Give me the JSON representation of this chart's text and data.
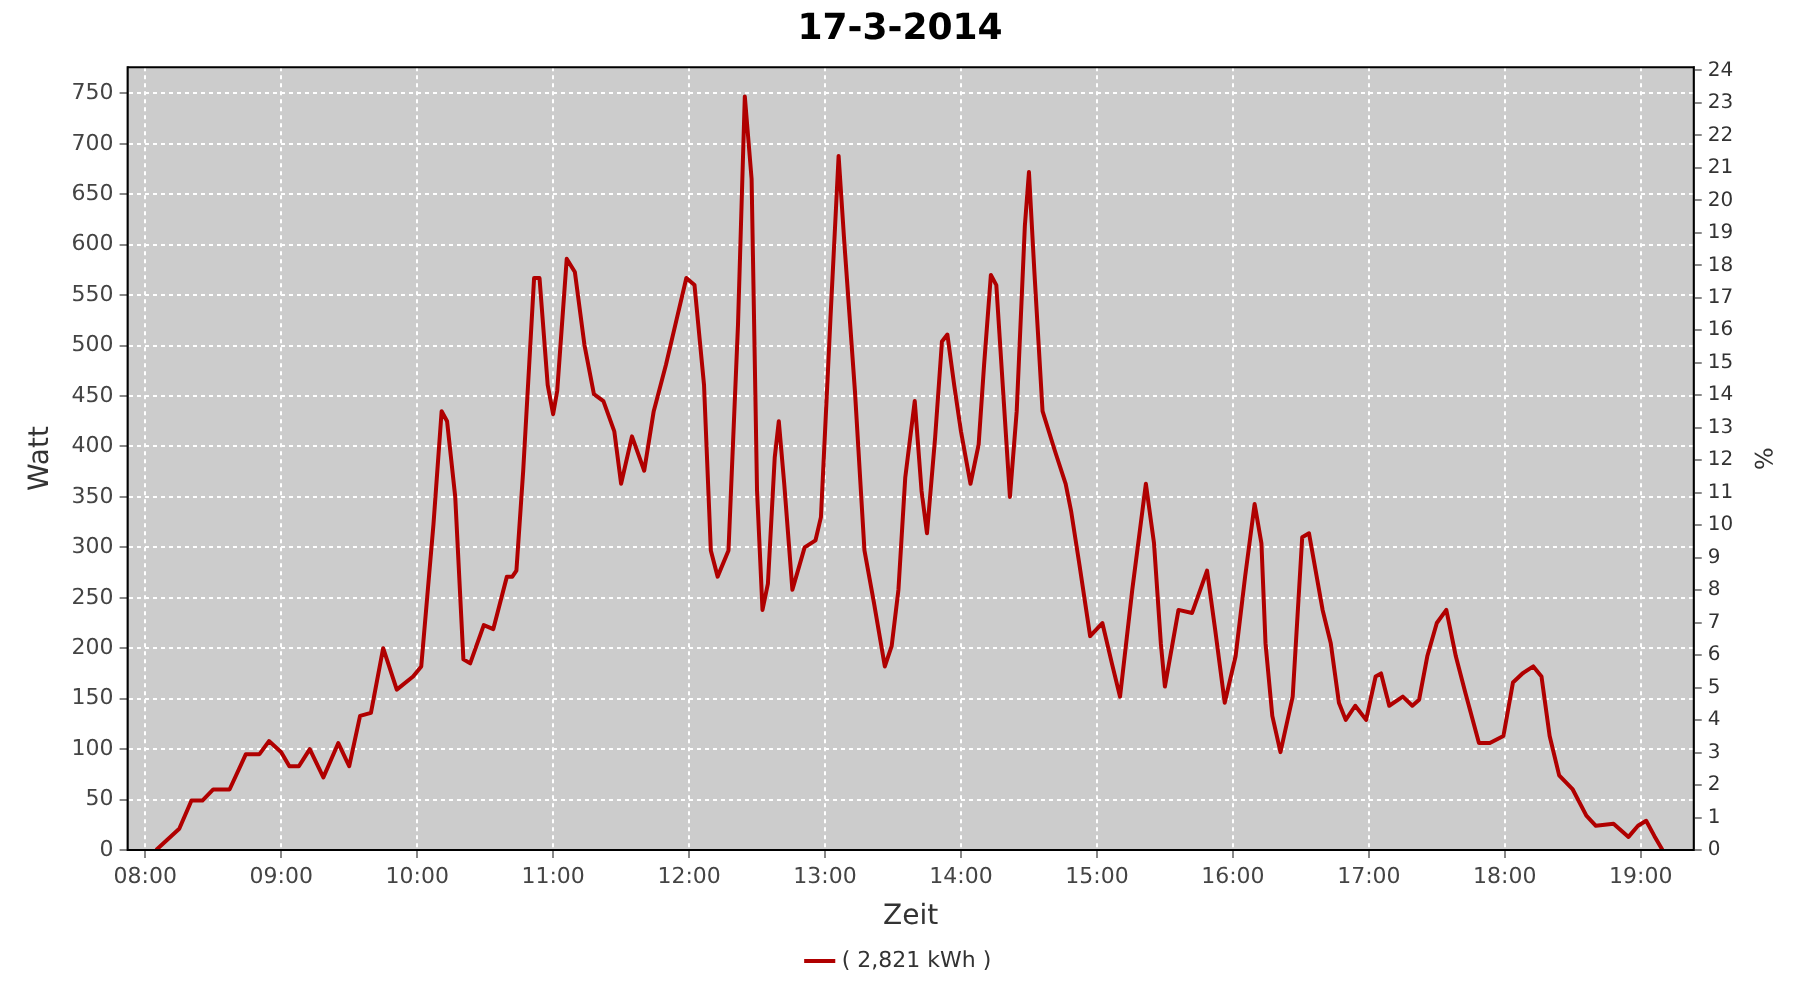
{
  "chart_data": {
    "type": "line",
    "title": "17-3-2014",
    "xlabel": "Zeit",
    "ylabel": "Watt",
    "y2label": "%",
    "x": [
      8.08,
      8.25,
      8.34,
      8.42,
      8.5,
      8.62,
      8.74,
      8.84,
      8.91,
      9.0,
      9.06,
      9.13,
      9.21,
      9.31,
      9.42,
      9.5,
      9.58,
      9.66,
      9.75,
      9.85,
      9.97,
      10.03,
      10.12,
      10.18,
      10.22,
      10.28,
      10.34,
      10.39,
      10.49,
      10.56,
      10.66,
      10.7,
      10.73,
      10.78,
      10.86,
      10.9,
      10.96,
      11.0,
      11.03,
      11.1,
      11.16,
      11.23,
      11.3,
      11.37,
      11.45,
      11.5,
      11.58,
      11.67,
      11.74,
      11.83,
      11.91,
      11.98,
      12.04,
      12.11,
      12.16,
      12.21,
      12.29,
      12.36,
      12.41,
      12.46,
      12.5,
      12.54,
      12.58,
      12.63,
      12.66,
      12.7,
      12.76,
      12.85,
      12.93,
      12.97,
      13.04,
      13.1,
      13.14,
      13.22,
      13.29,
      13.36,
      13.44,
      13.49,
      13.54,
      13.59,
      13.66,
      13.71,
      13.75,
      13.81,
      13.86,
      13.9,
      13.95,
      14.0,
      14.07,
      14.13,
      14.17,
      14.22,
      14.26,
      14.31,
      14.36,
      14.41,
      14.47,
      14.5,
      14.54,
      14.6,
      14.69,
      14.77,
      14.81,
      14.87,
      14.95,
      15.04,
      15.11,
      15.17,
      15.26,
      15.36,
      15.42,
      15.47,
      15.5,
      15.6,
      15.7,
      15.81,
      15.87,
      15.94,
      16.02,
      16.09,
      16.16,
      16.21,
      16.24,
      16.29,
      16.35,
      16.44,
      16.51,
      16.56,
      16.66,
      16.72,
      16.78,
      16.83,
      16.9,
      16.98,
      17.05,
      17.09,
      17.15,
      17.25,
      17.32,
      17.37,
      17.43,
      17.5,
      17.57,
      17.64,
      17.71,
      17.81,
      17.89,
      17.99,
      18.06,
      18.13,
      18.21,
      18.27,
      18.33,
      18.4,
      18.5,
      18.6,
      18.67,
      18.8,
      18.91,
      18.98,
      19.04,
      19.1,
      19.16
    ],
    "series": [
      {
        "name": "( 2,821 kWh )",
        "color": "#b00000",
        "values": [
          0,
          21,
          49,
          49,
          60,
          60,
          95,
          95,
          108,
          97,
          83,
          83,
          100,
          72,
          106,
          83,
          133,
          136,
          200,
          159,
          172,
          182,
          323,
          435,
          425,
          350,
          189,
          185,
          223,
          219,
          271,
          271,
          277,
          376,
          567,
          567,
          461,
          432,
          455,
          586,
          573,
          501,
          452,
          445,
          415,
          363,
          410,
          376,
          435,
          481,
          527,
          567,
          560,
          461,
          297,
          271,
          297,
          521,
          747,
          665,
          356,
          238,
          264,
          389,
          425,
          363,
          258,
          300,
          307,
          330,
          527,
          688,
          606,
          455,
          297,
          245,
          182,
          202,
          258,
          369,
          445,
          356,
          314,
          409,
          504,
          511,
          461,
          415,
          363,
          402,
          481,
          570,
          560,
          455,
          350,
          435,
          619,
          672,
          573,
          435,
          396,
          363,
          336,
          284,
          212,
          225,
          185,
          152,
          258,
          363,
          304,
          205,
          162,
          238,
          235,
          277,
          218,
          146,
          192,
          271,
          343,
          304,
          205,
          133,
          97,
          152,
          310,
          314,
          238,
          205,
          146,
          129,
          143,
          129,
          172,
          175,
          143,
          152,
          143,
          149,
          192,
          225,
          238,
          192,
          156,
          106,
          106,
          113,
          166,
          175,
          182,
          172,
          113,
          74,
          60,
          34,
          24,
          26,
          13,
          24,
          29,
          14,
          0
        ]
      }
    ],
    "xlim": [
      7.87,
      19.39
    ],
    "xticks": [
      {
        "value": 8,
        "label": "08:00"
      },
      {
        "value": 9,
        "label": "09:00"
      },
      {
        "value": 10,
        "label": "10:00"
      },
      {
        "value": 11,
        "label": "11:00"
      },
      {
        "value": 12,
        "label": "12:00"
      },
      {
        "value": 13,
        "label": "13:00"
      },
      {
        "value": 14,
        "label": "14:00"
      },
      {
        "value": 15,
        "label": "15:00"
      },
      {
        "value": 16,
        "label": "16:00"
      },
      {
        "value": 17,
        "label": "17:00"
      },
      {
        "value": 18,
        "label": "18:00"
      },
      {
        "value": 19,
        "label": "19:00"
      }
    ],
    "ylim": [
      0,
      776
    ],
    "yticks": [
      0,
      50,
      100,
      150,
      200,
      250,
      300,
      350,
      400,
      450,
      500,
      550,
      600,
      650,
      700,
      750
    ],
    "y2lim": [
      0,
      24.1
    ],
    "y2ticks": [
      0,
      1,
      2,
      3,
      4,
      5,
      6,
      7,
      8,
      9,
      10,
      11,
      12,
      13,
      14,
      15,
      16,
      17,
      18,
      19,
      20,
      21,
      22,
      23,
      24
    ],
    "grid": true,
    "legend": "bottom",
    "marker": "none",
    "line_style": "solid"
  }
}
